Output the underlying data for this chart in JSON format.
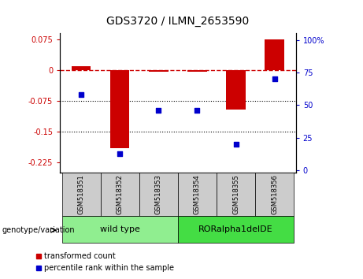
{
  "title": "GDS3720 / ILMN_2653590",
  "samples": [
    "GSM518351",
    "GSM518352",
    "GSM518353",
    "GSM518354",
    "GSM518355",
    "GSM518356"
  ],
  "red_values": [
    0.01,
    -0.19,
    -0.004,
    -0.004,
    -0.095,
    0.075
  ],
  "blue_values_pct": [
    58,
    13,
    46,
    46,
    20,
    70
  ],
  "ylim_left": [
    -0.25,
    0.09
  ],
  "ylim_right": [
    -2,
    105
  ],
  "yticks_left": [
    0.075,
    0.0,
    -0.075,
    -0.15,
    -0.225
  ],
  "yticks_right": [
    100,
    75,
    50,
    25,
    0
  ],
  "dotted_lines": [
    -0.075,
    -0.15
  ],
  "wild_type_samples": [
    0,
    1,
    2
  ],
  "ror_samples": [
    3,
    4,
    5
  ],
  "wild_type_label": "wild type",
  "ror_label": "RORalpha1delDE",
  "genotype_label": "genotype/variation",
  "legend_red": "transformed count",
  "legend_blue": "percentile rank within the sample",
  "bar_color": "#cc0000",
  "blue_color": "#0000cc",
  "wt_bg_color": "#90ee90",
  "ror_bg_color": "#44dd44",
  "sample_bg_color": "#cccccc",
  "bar_width": 0.5,
  "left_axis_color": "#cc0000",
  "right_axis_color": "#0000cc"
}
